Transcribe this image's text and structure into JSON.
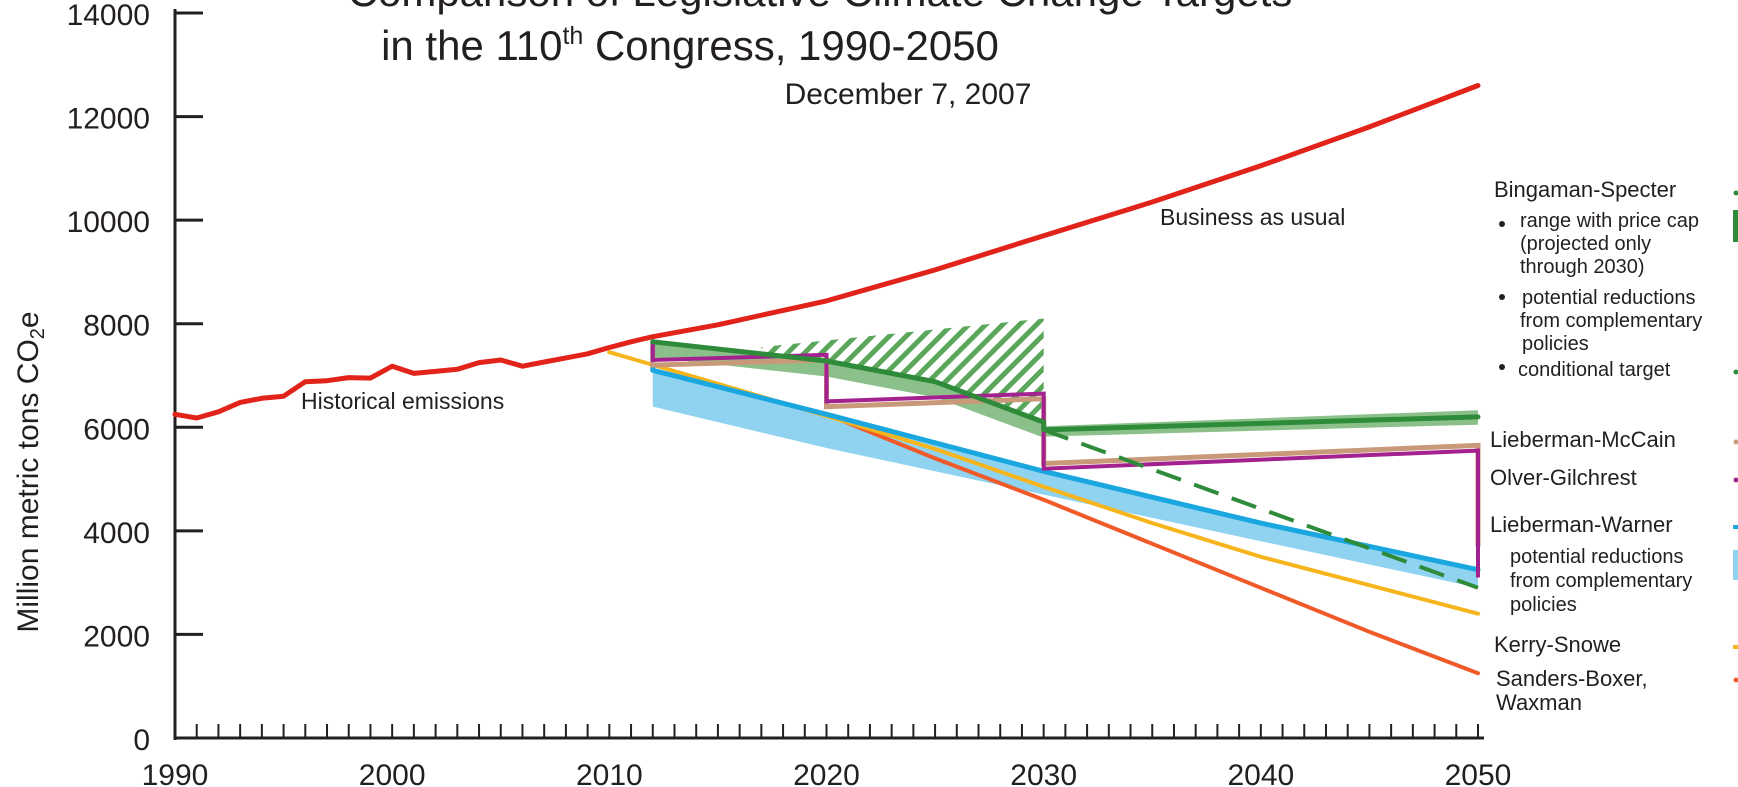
{
  "chart_data": {
    "type": "line",
    "title_line1": "Comparison of Legislative Climate Change Targets",
    "title_line2_pre": "in the 110",
    "title_line2_sup": "th",
    "title_line2_post": " Congress, 1990-2050",
    "subtitle": "December 7, 2007",
    "ylabel_main": "Million metric tons CO",
    "ylabel_sub": "2",
    "ylabel_end": "e",
    "xlim": [
      1990,
      2050
    ],
    "ylim": [
      0,
      14000
    ],
    "x_ticks": [
      "1990",
      "2000",
      "2010",
      "2020",
      "2030",
      "2040",
      "2050"
    ],
    "y_ticks": [
      "0",
      "2000",
      "4000",
      "6000",
      "8000",
      "10000",
      "12000",
      "14000"
    ],
    "annotations": {
      "historical": "Historical emissions",
      "bau": "Business as usual"
    },
    "colors": {
      "bau": "#e2231a",
      "bs": "#2e8b3a",
      "bs_light": "#8cc08a",
      "lm": "#c99a7a",
      "og": "#a3228f",
      "lw": "#1aa7e0",
      "lw_light": "#8fd3f1",
      "ks": "#f6b51d",
      "sb": "#ef5a28"
    },
    "series": {
      "historical": {
        "x": [
          1990,
          1991,
          1992,
          1993,
          1994,
          1995,
          1996,
          1997,
          1998,
          1999,
          2000,
          2001,
          2002,
          2003,
          2004,
          2005,
          2006,
          2007,
          2008,
          2009,
          2010,
          2011,
          2012
        ],
        "y": [
          6250,
          6180,
          6300,
          6480,
          6560,
          6600,
          6880,
          6900,
          6960,
          6950,
          7180,
          7040,
          7080,
          7120,
          7250,
          7300,
          7180,
          7260,
          7340,
          7420,
          7540,
          7650,
          7750
        ]
      },
      "bau": {
        "x": [
          2012,
          2015,
          2020,
          2025,
          2030,
          2035,
          2040,
          2045,
          2050
        ],
        "y": [
          7750,
          7980,
          8440,
          9040,
          9700,
          10350,
          11050,
          11800,
          12600
        ]
      },
      "bingaman_specter": {
        "x": [
          2012,
          2020,
          2025,
          2030,
          2030,
          2050
        ],
        "y": [
          7650,
          7280,
          6880,
          6100,
          5950,
          6200
        ]
      },
      "bingaman_specter_conditional": {
        "x": [
          2030,
          2050
        ],
        "y": [
          5950,
          2900
        ]
      },
      "lieberman_mccain": {
        "x": [
          2012,
          2012,
          2020,
          2020,
          2030,
          2030,
          2050,
          2050
        ],
        "y": [
          7650,
          7200,
          7300,
          6400,
          6550,
          5300,
          5650,
          3700
        ]
      },
      "olver_gilchrest": {
        "x": [
          2012,
          2012,
          2020,
          2020,
          2030,
          2030,
          2050,
          2050
        ],
        "y": [
          7650,
          7300,
          7400,
          6500,
          6650,
          5200,
          5550,
          3100
        ]
      },
      "lieberman_warner": {
        "x": [
          2012,
          2012,
          2020,
          2030,
          2040,
          2050
        ],
        "y": [
          7650,
          7100,
          6250,
          5150,
          4150,
          3250
        ]
      },
      "kerry_snowe": {
        "x": [
          2010,
          2015,
          2020,
          2025,
          2030,
          2035,
          2040,
          2045,
          2050
        ],
        "y": [
          7450,
          6840,
          6220,
          5580,
          4850,
          4150,
          3500,
          2950,
          2400
        ]
      },
      "sanders_boxer_waxman": {
        "x": [
          2020,
          2025,
          2030,
          2035,
          2040,
          2045,
          2050
        ],
        "y": [
          6250,
          5400,
          4600,
          3750,
          2900,
          2050,
          1250
        ]
      },
      "lw_range_lower": {
        "x": [
          2012,
          2020,
          2030,
          2040,
          2050
        ],
        "y": [
          6400,
          5600,
          4700,
          3800,
          2900
        ]
      },
      "bs_price_cap_upper": {
        "x": [
          2017,
          2030
        ],
        "y": [
          7550,
          8100
        ]
      }
    },
    "legend": {
      "bs_title": "Bingaman-Specter",
      "bs_item1_lines": [
        "range with price cap",
        "(projected only",
        "through 2030)"
      ],
      "bs_item2_lines": [
        "potential reductions",
        "from complementary",
        "policies"
      ],
      "bs_item3": "conditional target",
      "lm": "Lieberman-McCain",
      "og": "Olver-Gilchrest",
      "lw": "Lieberman-Warner",
      "lw_sub_lines": [
        "potential reductions",
        "from complementary",
        "policies"
      ],
      "ks": "Kerry-Snowe",
      "sb_lines": [
        "Sanders-Boxer,",
        "Waxman"
      ]
    }
  }
}
